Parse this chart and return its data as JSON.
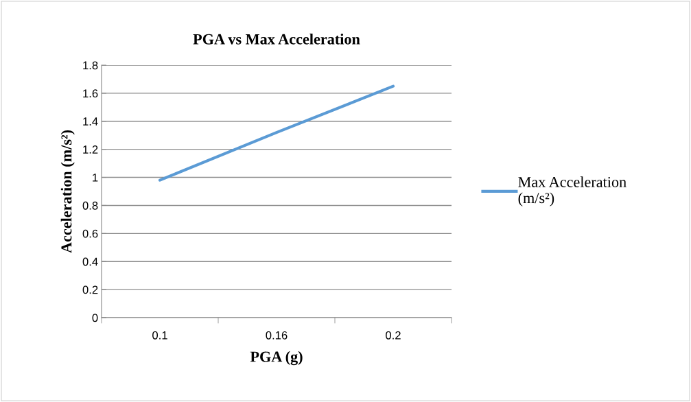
{
  "chart_data": {
    "type": "line",
    "title": "PGA vs Max Acceleration",
    "xlabel": "PGA (g)",
    "ylabel": "Acceleration (m/s²)",
    "categories": [
      "0.1",
      "0.16",
      "0.2"
    ],
    "series": [
      {
        "name": "Max Acceleration\n(m/s²)",
        "color": "#5b9bd5",
        "values": [
          0.98,
          1.32,
          1.65
        ]
      }
    ],
    "ylim": [
      0,
      1.8
    ],
    "yticks": [
      0,
      {
        "value": 0.2,
        "label": "0.2"
      },
      {
        "value": 0.4,
        "label": "0.4"
      },
      {
        "value": 0.6,
        "label": "0.6"
      },
      {
        "value": 0.8,
        "label": "0.8"
      },
      1,
      {
        "value": 1.2,
        "label": "1.2"
      },
      {
        "value": 1.4,
        "label": "1.4"
      },
      {
        "value": 1.6,
        "label": "1.6"
      },
      {
        "value": 1.8,
        "label": "1.8"
      }
    ],
    "grid": "y",
    "legend": "right",
    "marker": "none",
    "line_style": "solid"
  }
}
